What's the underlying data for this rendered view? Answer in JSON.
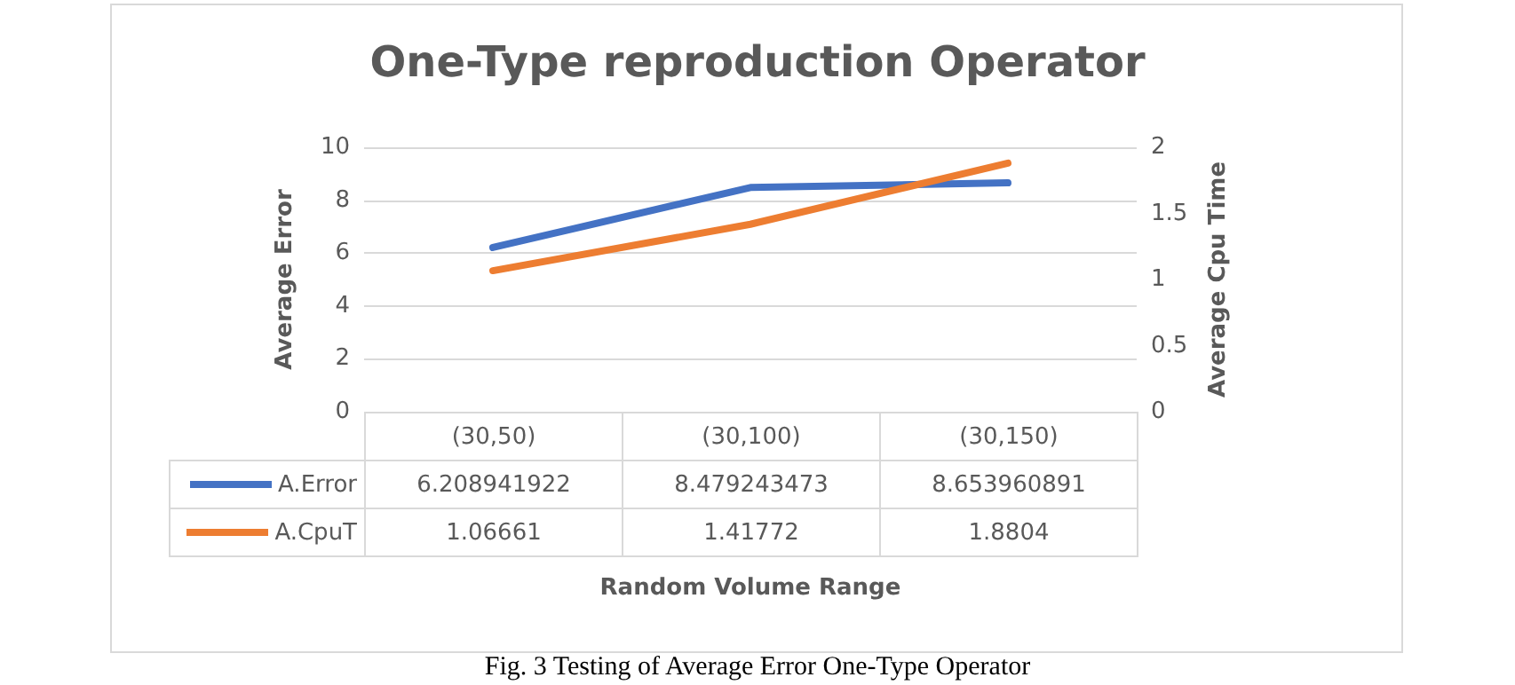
{
  "chart_data": {
    "type": "line",
    "title": "One-Type reproduction Operator",
    "ylabel": "Average Error",
    "y2label": "Average Cpu Time",
    "categories": [
      "(30,50)",
      "(30,100)",
      "(30,150)"
    ],
    "series": [
      {
        "name": "A.Error",
        "color": "#4472c4",
        "values": [
          6.208941922,
          8.479243473,
          8.653960891
        ]
      },
      {
        "name": "A.CpuT",
        "color": "#ed7d31",
        "values": [
          1.06661,
          1.41772,
          1.8804
        ],
        "axis": "y2"
      }
    ],
    "ylim": [
      0,
      10
    ],
    "yticks": [
      0,
      2,
      4,
      6,
      8,
      10
    ],
    "y2lim": [
      0,
      2
    ],
    "y2ticks": [
      0,
      0.5,
      1,
      1.5,
      2
    ],
    "grid": "y",
    "legend": "bottom",
    "marker": "none",
    "data_labels": true,
    "annotations": [
      "Random Volume Range",
      "Fig. 3 Testing of Average Error One-Type Operator"
    ]
  }
}
